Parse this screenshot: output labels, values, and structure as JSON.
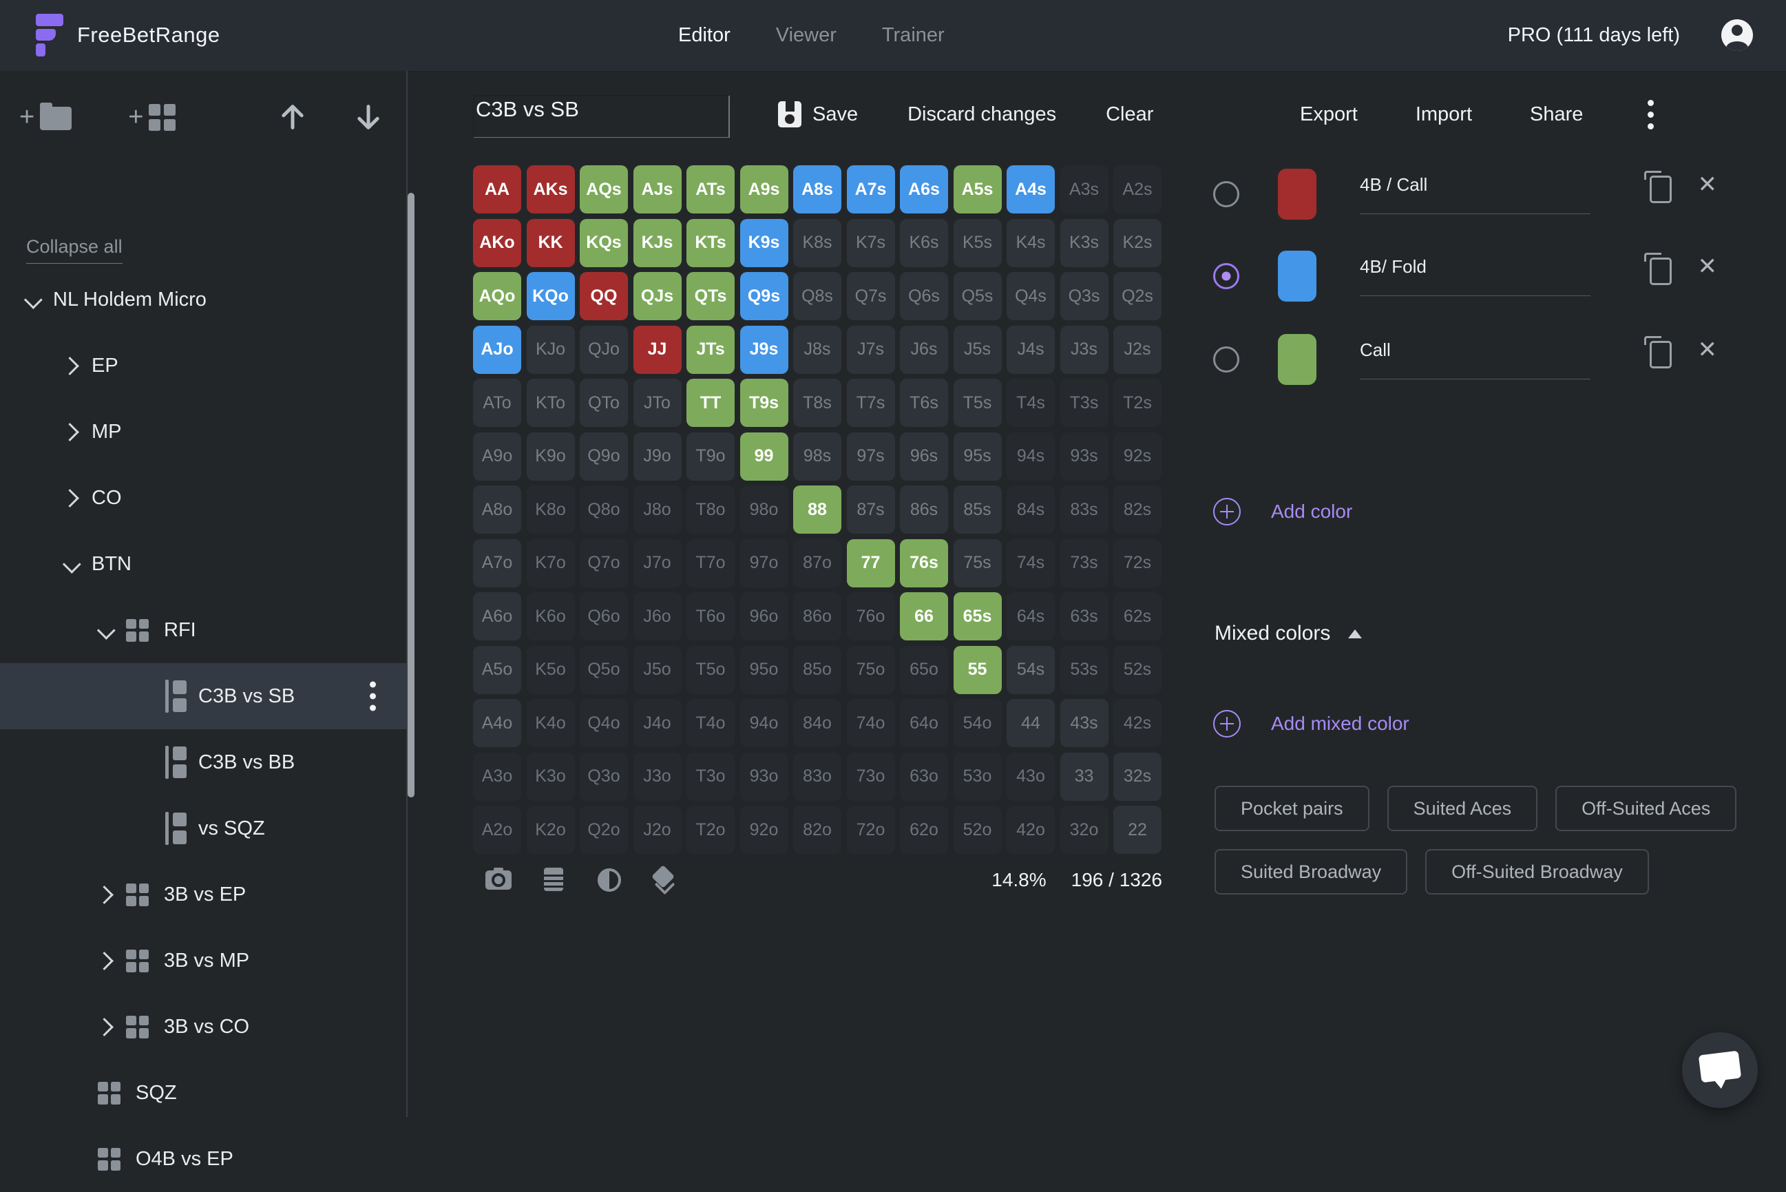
{
  "navbar": {
    "brand": "FreeBetRange",
    "tabs": [
      {
        "label": "Editor",
        "active": true
      },
      {
        "label": "Viewer",
        "active": false
      },
      {
        "label": "Trainer",
        "active": false
      }
    ],
    "plan": "PRO (111 days left)"
  },
  "sidebar": {
    "collapse_all": "Collapse all",
    "tree": [
      {
        "label": "NL Holdem Micro",
        "level": 0,
        "chevron": "down"
      },
      {
        "label": "EP",
        "level": 1,
        "chevron": "right"
      },
      {
        "label": "MP",
        "level": 1,
        "chevron": "right"
      },
      {
        "label": "CO",
        "level": 1,
        "chevron": "right"
      },
      {
        "label": "BTN",
        "level": 1,
        "chevron": "down"
      },
      {
        "label": "RFI",
        "level": 2,
        "chevron": "down",
        "icon": "grid"
      },
      {
        "label": "C3B vs SB",
        "level": 3,
        "icon": "range",
        "selected": true,
        "kebab": true
      },
      {
        "label": "C3B vs BB",
        "level": 3,
        "icon": "range"
      },
      {
        "label": "vs SQZ",
        "level": 3,
        "icon": "range"
      },
      {
        "label": "3B vs EP",
        "level": 2,
        "chevron": "right",
        "icon": "grid"
      },
      {
        "label": "3B vs MP",
        "level": 2,
        "chevron": "right",
        "icon": "grid"
      },
      {
        "label": "3B vs CO",
        "level": 2,
        "chevron": "right",
        "icon": "grid"
      },
      {
        "label": "SQZ",
        "level": 2,
        "icon": "grid"
      },
      {
        "label": "O4B vs EP",
        "level": 2,
        "icon": "grid"
      }
    ]
  },
  "toolbar": {
    "title": "C3B vs SB",
    "save": "Save",
    "discard": "Discard changes",
    "clear": "Clear",
    "export": "Export",
    "import": "Import",
    "share": "Share"
  },
  "colors": {
    "red": "#a32d2d",
    "green": "#7dab5b",
    "blue": "#4496e8",
    "accent_purple": "#a78bf5",
    "radio_checked": "#9d7bf0"
  },
  "color_actions": [
    {
      "name": "4B / Call",
      "color": "#a32d2d",
      "selected": false
    },
    {
      "name": "4B/ Fold",
      "color": "#4496e8",
      "selected": true
    },
    {
      "name": "Call",
      "color": "#7dab5b",
      "selected": false
    }
  ],
  "panel": {
    "add_color": "Add color",
    "mixed_colors": "Mixed colors",
    "add_mixed_color": "Add mixed color",
    "presets": [
      "Pocket pairs",
      "Suited Aces",
      "Off-Suited Aces",
      "Suited Broadway",
      "Off-Suited Broadway"
    ]
  },
  "matrix": {
    "legend": {
      "r": "4B / Call",
      "g": "Call",
      "b": "4B/ Fold",
      "d": "in-range-unassigned",
      "f": "not-in-range"
    },
    "cells": [
      [
        "AA",
        "r"
      ],
      [
        "AKs",
        "r"
      ],
      [
        "AQs",
        "g"
      ],
      [
        "AJs",
        "g"
      ],
      [
        "ATs",
        "g"
      ],
      [
        "A9s",
        "g"
      ],
      [
        "A8s",
        "b"
      ],
      [
        "A7s",
        "b"
      ],
      [
        "A6s",
        "b"
      ],
      [
        "A5s",
        "g"
      ],
      [
        "A4s",
        "b"
      ],
      [
        "A3s",
        "f"
      ],
      [
        "A2s",
        "f"
      ],
      [
        "AKo",
        "r"
      ],
      [
        "KK",
        "r"
      ],
      [
        "KQs",
        "g"
      ],
      [
        "KJs",
        "g"
      ],
      [
        "KTs",
        "g"
      ],
      [
        "K9s",
        "b"
      ],
      [
        "K8s",
        "d"
      ],
      [
        "K7s",
        "d"
      ],
      [
        "K6s",
        "d"
      ],
      [
        "K5s",
        "d"
      ],
      [
        "K4s",
        "d"
      ],
      [
        "K3s",
        "d"
      ],
      [
        "K2s",
        "d"
      ],
      [
        "AQo",
        "g"
      ],
      [
        "KQo",
        "b"
      ],
      [
        "QQ",
        "r"
      ],
      [
        "QJs",
        "g"
      ],
      [
        "QTs",
        "g"
      ],
      [
        "Q9s",
        "b"
      ],
      [
        "Q8s",
        "d"
      ],
      [
        "Q7s",
        "d"
      ],
      [
        "Q6s",
        "d"
      ],
      [
        "Q5s",
        "d"
      ],
      [
        "Q4s",
        "d"
      ],
      [
        "Q3s",
        "d"
      ],
      [
        "Q2s",
        "d"
      ],
      [
        "AJo",
        "b"
      ],
      [
        "KJo",
        "d"
      ],
      [
        "QJo",
        "d"
      ],
      [
        "JJ",
        "r"
      ],
      [
        "JTs",
        "g"
      ],
      [
        "J9s",
        "b"
      ],
      [
        "J8s",
        "d"
      ],
      [
        "J7s",
        "d"
      ],
      [
        "J6s",
        "d"
      ],
      [
        "J5s",
        "d"
      ],
      [
        "J4s",
        "d"
      ],
      [
        "J3s",
        "d"
      ],
      [
        "J2s",
        "d"
      ],
      [
        "ATo",
        "d"
      ],
      [
        "KTo",
        "d"
      ],
      [
        "QTo",
        "d"
      ],
      [
        "JTo",
        "d"
      ],
      [
        "TT",
        "g"
      ],
      [
        "T9s",
        "g"
      ],
      [
        "T8s",
        "d"
      ],
      [
        "T7s",
        "d"
      ],
      [
        "T6s",
        "d"
      ],
      [
        "T5s",
        "d"
      ],
      [
        "T4s",
        "f"
      ],
      [
        "T3s",
        "f"
      ],
      [
        "T2s",
        "f"
      ],
      [
        "A9o",
        "d"
      ],
      [
        "K9o",
        "d"
      ],
      [
        "Q9o",
        "d"
      ],
      [
        "J9o",
        "d"
      ],
      [
        "T9o",
        "d"
      ],
      [
        "99",
        "g"
      ],
      [
        "98s",
        "d"
      ],
      [
        "97s",
        "d"
      ],
      [
        "96s",
        "d"
      ],
      [
        "95s",
        "d"
      ],
      [
        "94s",
        "f"
      ],
      [
        "93s",
        "f"
      ],
      [
        "92s",
        "f"
      ],
      [
        "A8o",
        "d"
      ],
      [
        "K8o",
        "f"
      ],
      [
        "Q8o",
        "f"
      ],
      [
        "J8o",
        "f"
      ],
      [
        "T8o",
        "f"
      ],
      [
        "98o",
        "f"
      ],
      [
        "88",
        "g"
      ],
      [
        "87s",
        "d"
      ],
      [
        "86s",
        "d"
      ],
      [
        "85s",
        "d"
      ],
      [
        "84s",
        "f"
      ],
      [
        "83s",
        "f"
      ],
      [
        "82s",
        "f"
      ],
      [
        "A7o",
        "d"
      ],
      [
        "K7o",
        "f"
      ],
      [
        "Q7o",
        "f"
      ],
      [
        "J7o",
        "f"
      ],
      [
        "T7o",
        "f"
      ],
      [
        "97o",
        "f"
      ],
      [
        "87o",
        "f"
      ],
      [
        "77",
        "g"
      ],
      [
        "76s",
        "g"
      ],
      [
        "75s",
        "d"
      ],
      [
        "74s",
        "f"
      ],
      [
        "73s",
        "f"
      ],
      [
        "72s",
        "f"
      ],
      [
        "A6o",
        "d"
      ],
      [
        "K6o",
        "f"
      ],
      [
        "Q6o",
        "f"
      ],
      [
        "J6o",
        "f"
      ],
      [
        "T6o",
        "f"
      ],
      [
        "96o",
        "f"
      ],
      [
        "86o",
        "f"
      ],
      [
        "76o",
        "f"
      ],
      [
        "66",
        "g"
      ],
      [
        "65s",
        "g"
      ],
      [
        "64s",
        "f"
      ],
      [
        "63s",
        "f"
      ],
      [
        "62s",
        "f"
      ],
      [
        "A5o",
        "d"
      ],
      [
        "K5o",
        "f"
      ],
      [
        "Q5o",
        "f"
      ],
      [
        "J5o",
        "f"
      ],
      [
        "T5o",
        "f"
      ],
      [
        "95o",
        "f"
      ],
      [
        "85o",
        "f"
      ],
      [
        "75o",
        "f"
      ],
      [
        "65o",
        "f"
      ],
      [
        "55",
        "g"
      ],
      [
        "54s",
        "d"
      ],
      [
        "53s",
        "f"
      ],
      [
        "52s",
        "f"
      ],
      [
        "A4o",
        "d"
      ],
      [
        "K4o",
        "f"
      ],
      [
        "Q4o",
        "f"
      ],
      [
        "J4o",
        "f"
      ],
      [
        "T4o",
        "f"
      ],
      [
        "94o",
        "f"
      ],
      [
        "84o",
        "f"
      ],
      [
        "74o",
        "f"
      ],
      [
        "64o",
        "f"
      ],
      [
        "54o",
        "f"
      ],
      [
        "44",
        "d"
      ],
      [
        "43s",
        "d"
      ],
      [
        "42s",
        "f"
      ],
      [
        "A3o",
        "f"
      ],
      [
        "K3o",
        "f"
      ],
      [
        "Q3o",
        "f"
      ],
      [
        "J3o",
        "f"
      ],
      [
        "T3o",
        "f"
      ],
      [
        "93o",
        "f"
      ],
      [
        "83o",
        "f"
      ],
      [
        "73o",
        "f"
      ],
      [
        "63o",
        "f"
      ],
      [
        "53o",
        "f"
      ],
      [
        "43o",
        "f"
      ],
      [
        "33",
        "d"
      ],
      [
        "32s",
        "d"
      ],
      [
        "A2o",
        "f"
      ],
      [
        "K2o",
        "f"
      ],
      [
        "Q2o",
        "f"
      ],
      [
        "J2o",
        "f"
      ],
      [
        "T2o",
        "f"
      ],
      [
        "92o",
        "f"
      ],
      [
        "82o",
        "f"
      ],
      [
        "72o",
        "f"
      ],
      [
        "62o",
        "f"
      ],
      [
        "52o",
        "f"
      ],
      [
        "42o",
        "f"
      ],
      [
        "32o",
        "f"
      ],
      [
        "22",
        "d"
      ]
    ]
  },
  "footer": {
    "percent": "14.8%",
    "combos": "196 / 1326"
  }
}
